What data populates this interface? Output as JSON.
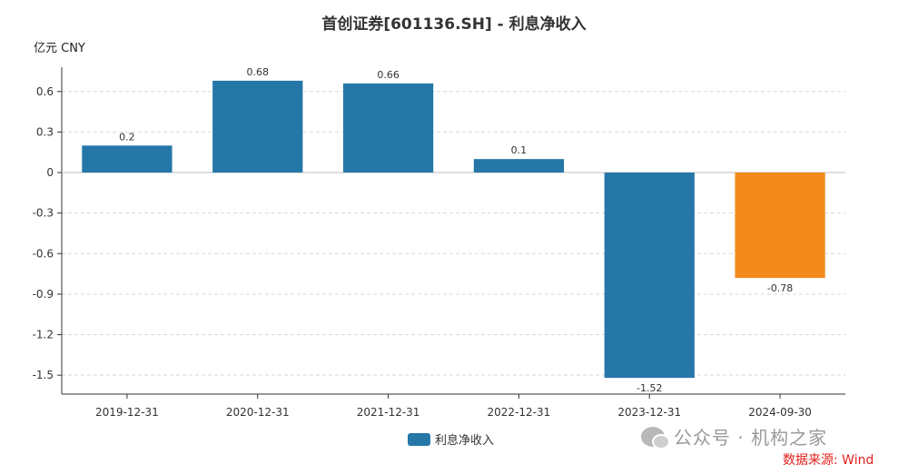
{
  "chart_data": {
    "type": "bar",
    "title": "首创证券[601136.SH] - 利息净收入",
    "unit_label": "亿元  CNY",
    "categories": [
      "2019-12-31",
      "2020-12-31",
      "2021-12-31",
      "2022-12-31",
      "2023-12-31",
      "2024-09-30"
    ],
    "values": [
      0.2,
      0.68,
      0.66,
      0.1,
      -1.52,
      -0.78
    ],
    "value_labels": [
      "0.2",
      "0.68",
      "0.66",
      "0.1",
      "-1.52",
      "-0.78"
    ],
    "bar_colors": [
      "#2577a8",
      "#2577a8",
      "#2577a8",
      "#2577a8",
      "#2577a8",
      "#f28b1b"
    ],
    "y_ticks": [
      0.6,
      0.3,
      0,
      -0.3,
      -0.6,
      -0.9,
      -1.2,
      -1.5
    ],
    "y_tick_labels": [
      "0.6",
      "0.3",
      "0",
      "-0.3",
      "-0.6",
      "-0.9",
      "-1.2",
      "-1.5"
    ],
    "ylim": [
      -1.64,
      0.78
    ],
    "grid": true,
    "legend": {
      "label": "利息净收入",
      "color": "#2577a8",
      "placement": "bottom-center"
    },
    "xlabel": "",
    "ylabel": "亿元  CNY"
  },
  "watermark": {
    "text": "公众号 · 机构之家",
    "icon": "wechat-icon"
  },
  "source": "数据来源: Wind"
}
